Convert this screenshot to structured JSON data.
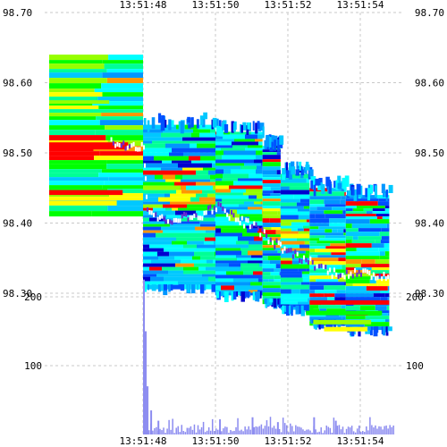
{
  "chart_data": [
    {
      "type": "heatmap",
      "title": "",
      "description": "Order-book depth heatmap: price levels over time, colored by depth intensity; white trail marks traded price",
      "xlabel": "",
      "ylabel": "",
      "x_ticks": [
        "13:51:48",
        "13:51:50",
        "13:51:52",
        "13:51:54"
      ],
      "x_tick_seconds": [
        0,
        2,
        4,
        6
      ],
      "xlim_seconds": [
        -1.3,
        7.0
      ],
      "y_ticks": [
        "98.30",
        "98.40",
        "98.50",
        "98.60",
        "98.70"
      ],
      "ylim": [
        98.27,
        98.7
      ],
      "tick_size": 0.01,
      "grid": true,
      "color_scale": [
        "#0000d0",
        "#0050ff",
        "#0096ff",
        "#00c8ff",
        "#00ffff",
        "#00ff96",
        "#00ff00",
        "#96ff00",
        "#ffff00",
        "#ff9600",
        "#ff0000"
      ],
      "trade_color": "#ffffff",
      "epochs": [
        {
          "t0": -0.05,
          "t1": 0.0,
          "low": 98.41,
          "high": 98.64,
          "mid": 98.51,
          "side": "ask",
          "intensity": [
            0.4,
            0.3,
            0.6,
            0.5,
            0.7,
            0.4,
            0.3,
            0.5,
            0.9,
            0.8,
            0.6,
            0.5,
            0.3,
            0.6,
            0.6,
            0.4,
            0.5,
            0.3,
            0.4,
            0.6,
            0.5,
            0.7,
            0.4
          ]
        },
        {
          "t0": 0.0,
          "t1": 2.0,
          "low": 98.31,
          "high": 98.54,
          "mid": 98.45
        },
        {
          "t0": 2.0,
          "t1": 3.3,
          "low": 98.3,
          "high": 98.53,
          "mid": 98.43
        },
        {
          "t0": 3.3,
          "t1": 3.8,
          "low": 98.29,
          "high": 98.51,
          "mid": 98.41
        },
        {
          "t0": 3.8,
          "t1": 4.6,
          "low": 98.28,
          "high": 98.47,
          "mid": 98.38
        },
        {
          "t0": 4.6,
          "t1": 5.6,
          "low": 98.26,
          "high": 98.45,
          "mid": 98.35
        },
        {
          "t0": 5.6,
          "t1": 6.8,
          "low": 98.25,
          "high": 98.44,
          "mid": 98.34
        }
      ]
    },
    {
      "type": "bar",
      "title": "",
      "xlabel": "",
      "ylabel": "",
      "description": "Traded volume per time slice",
      "x_ticks": [
        "13:51:48",
        "13:51:50",
        "13:51:52",
        "13:51:54"
      ],
      "y_ticks": [
        "100",
        "200"
      ],
      "ylim": [
        0,
        240
      ],
      "bar_color": "#8c8cf0",
      "spikes": [
        {
          "t": 0.0,
          "value": 225
        },
        {
          "t": 0.05,
          "value": 150
        },
        {
          "t": 0.1,
          "value": 70
        },
        {
          "t": 0.2,
          "value": 35
        },
        {
          "t": 0.4,
          "value": 20
        },
        {
          "t": 2.1,
          "value": 22
        },
        {
          "t": 3.0,
          "value": 25
        },
        {
          "t": 3.7,
          "value": 18
        },
        {
          "t": 4.7,
          "value": 25
        },
        {
          "t": 5.3,
          "value": 20
        }
      ],
      "baseline_range": [
        2,
        14
      ]
    }
  ]
}
